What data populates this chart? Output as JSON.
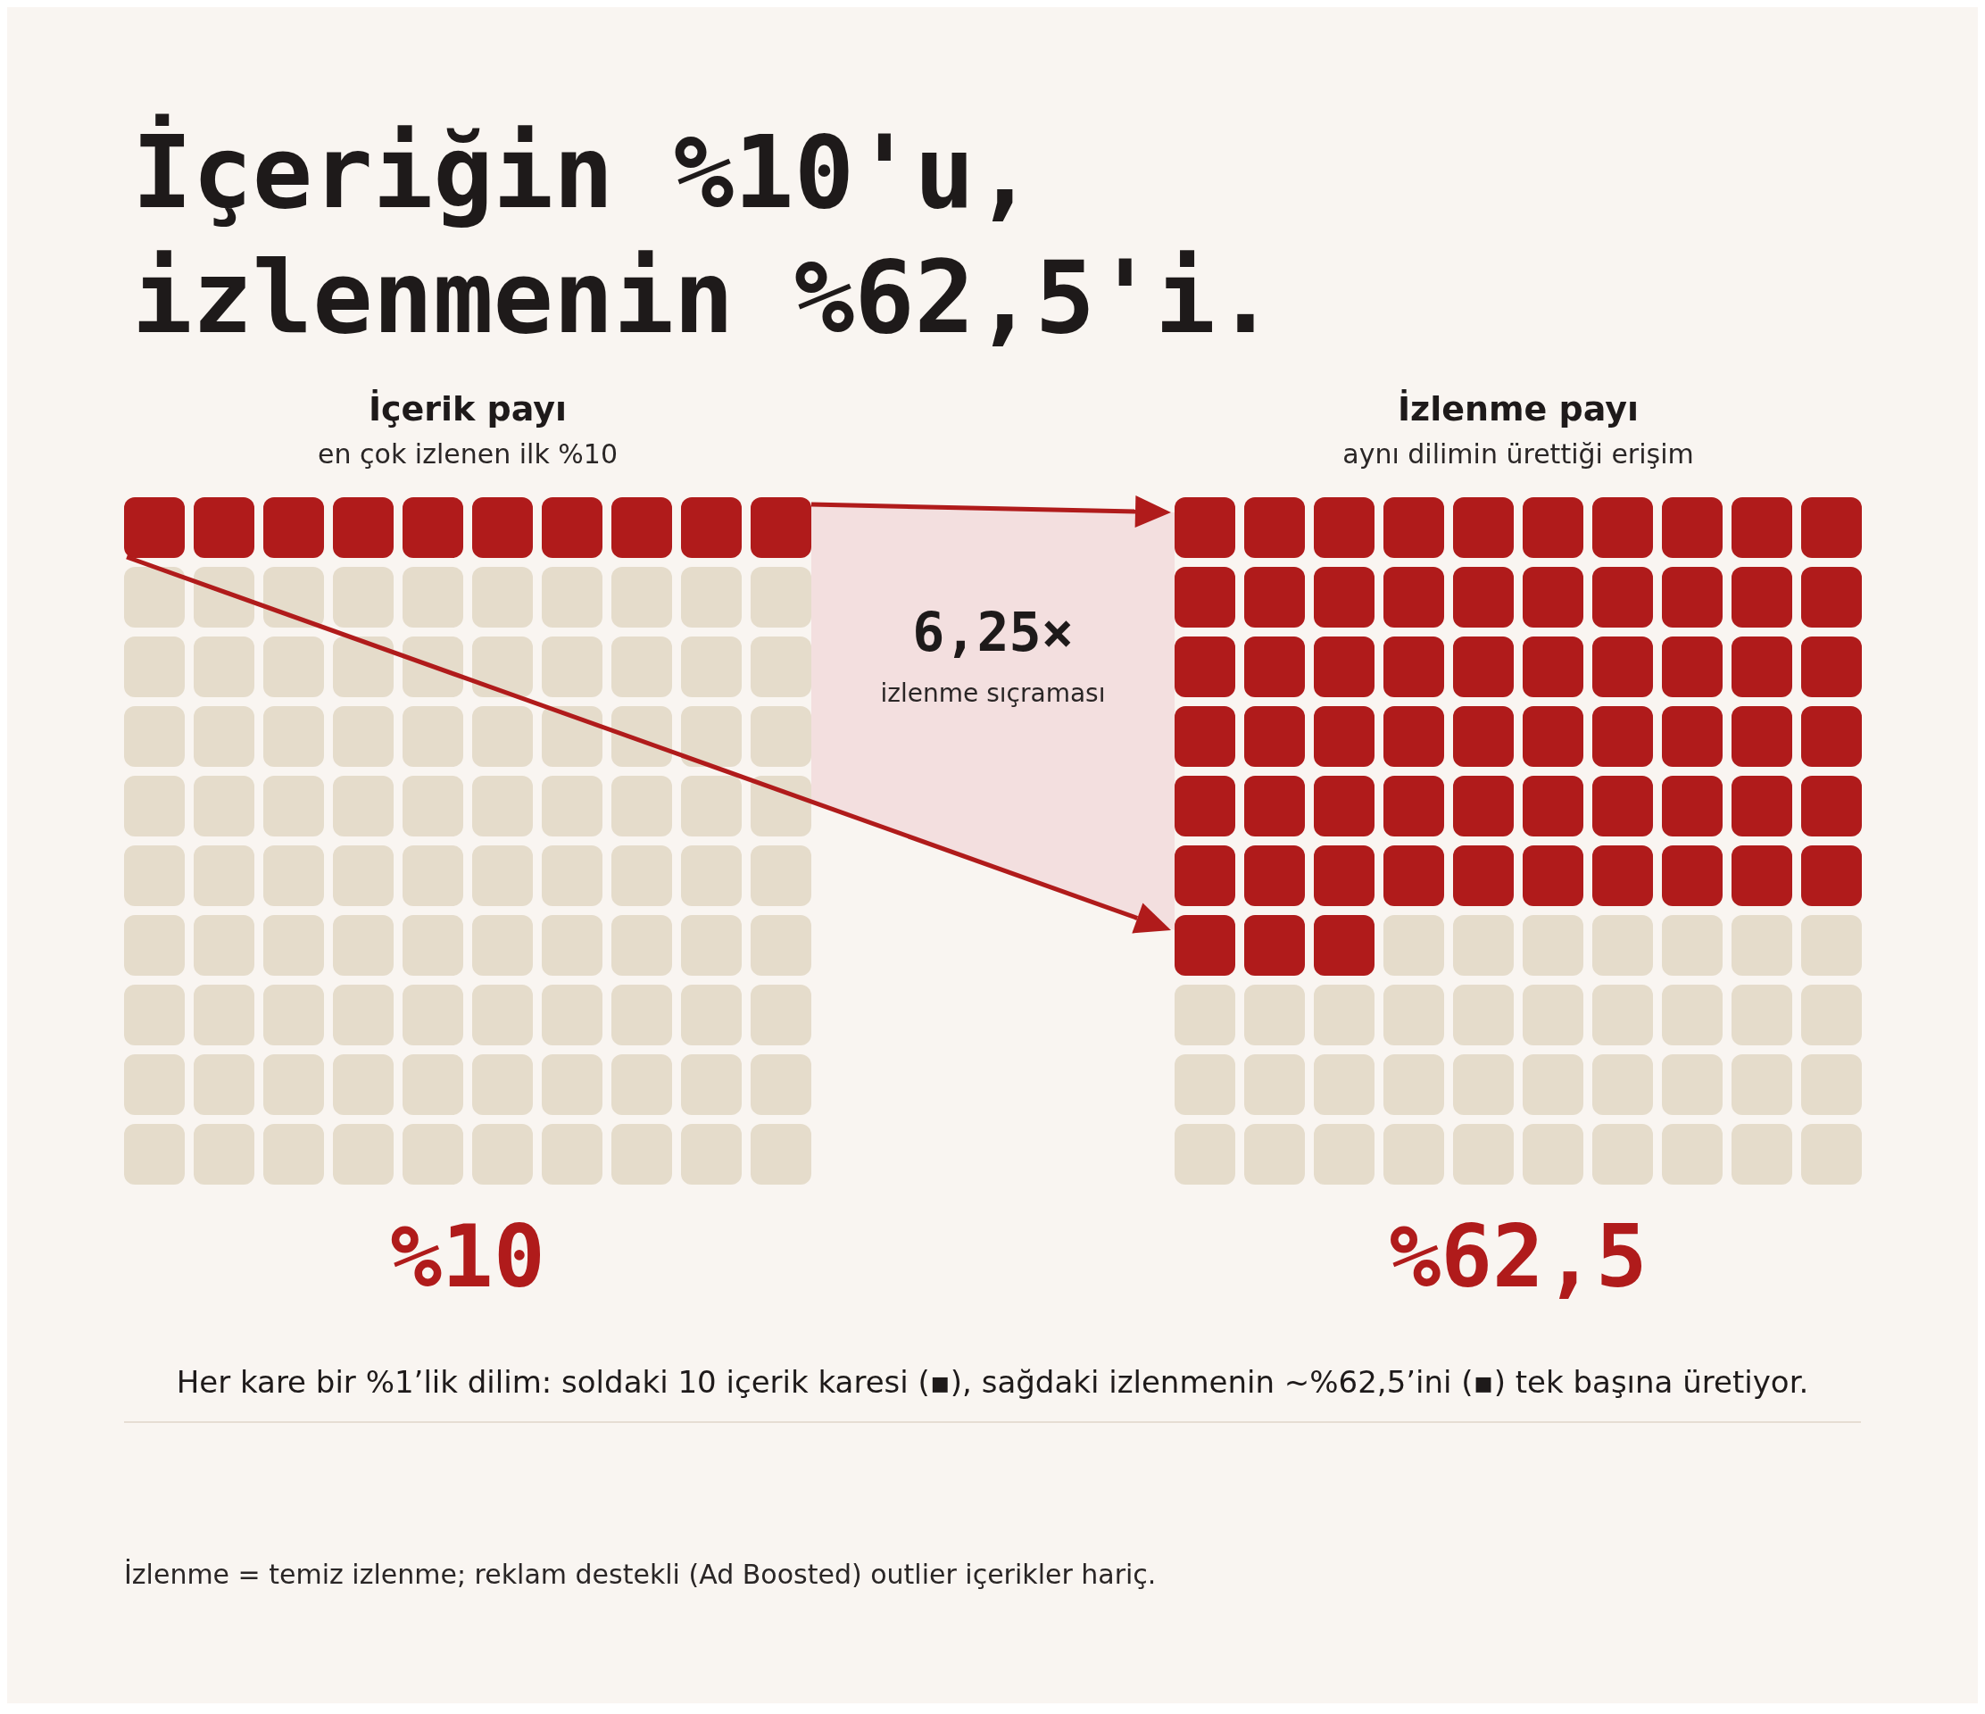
{
  "chart_data": {
    "type": "other",
    "title": "İçeriğin %10'u,\nizlenmenin %62,5'i.",
    "categories": [
      "İçerik payı",
      "İzlenme payı"
    ],
    "values": [
      10,
      62.5
    ],
    "value_labels": [
      "%10",
      "%62,5"
    ],
    "colors": [
      "#b01b1b",
      "#b01b1b"
    ],
    "annotations": [
      "en çok izlenen ilk %10",
      "aynı dilimin ürettiği erişim",
      "6,25×",
      "izlenme sıçraması",
      "Her kare bir %1’lik dilim: soldaki 10 içerik karesi (▪), sağdaki izlenmenin ~%62,5’ini (▪) tek başına üretiyor.",
      "İzlenme = temiz izlenme; reklam destekli (Ad Boosted) outlier içerikler hariç."
    ]
  }
}
